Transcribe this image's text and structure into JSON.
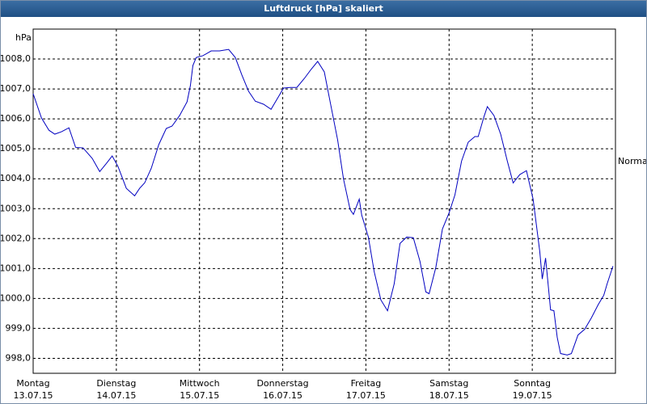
{
  "chart_data": {
    "type": "line",
    "title": "Luftdruck [hPa] skaliert",
    "y_label": "hPa",
    "annotation": "Normal",
    "xlim": [
      0,
      7
    ],
    "xticks": [
      {
        "value": 0,
        "label": "Montag\n13.07.15"
      },
      {
        "value": 1,
        "label": "Dienstag\n14.07.15"
      },
      {
        "value": 2,
        "label": "Mittwoch\n15.07.15"
      },
      {
        "value": 3,
        "label": "Donnerstag\n16.07.15"
      },
      {
        "value": 4,
        "label": "Freitag\n17.07.15"
      },
      {
        "value": 5,
        "label": "Samstag\n18.07.15"
      },
      {
        "value": 6,
        "label": "Sonntag\n19.07.15"
      }
    ],
    "ylim": [
      997.5,
      1009
    ],
    "yticks": [
      {
        "value": 998,
        "label": "998,0"
      },
      {
        "value": 999,
        "label": "999,0"
      },
      {
        "value": 1000,
        "label": "1000,0"
      },
      {
        "value": 1001,
        "label": "1001,0"
      },
      {
        "value": 1002,
        "label": "1002,0"
      },
      {
        "value": 1003,
        "label": "1003,0"
      },
      {
        "value": 1004,
        "label": "1004,0"
      },
      {
        "value": 1005,
        "label": "1005,0"
      },
      {
        "value": 1006,
        "label": "1006,0"
      },
      {
        "value": 1007,
        "label": "1007,0"
      },
      {
        "value": 1008,
        "label": "1008,0"
      }
    ],
    "grid": true,
    "series": [
      {
        "name": "Luftdruck",
        "color": "#0000c0",
        "x": [
          0,
          0.1,
          0.19,
          0.26,
          0.34,
          0.43,
          0.51,
          0.6,
          0.71,
          0.8,
          0.88,
          0.95,
          1.02,
          1.12,
          1.22,
          1.28,
          1.34,
          1.42,
          1.51,
          1.6,
          1.67,
          1.76,
          1.85,
          1.89,
          1.92,
          1.96,
          2.04,
          2.14,
          2.24,
          2.35,
          2.43,
          2.51,
          2.59,
          2.67,
          2.77,
          2.86,
          2.94,
          3.01,
          3.09,
          3.17,
          3.26,
          3.34,
          3.42,
          3.5,
          3.58,
          3.66,
          3.73,
          3.81,
          3.85,
          3.92,
          3.95,
          4.03,
          4.1,
          4.18,
          4.26,
          4.34,
          4.41,
          4.49,
          4.57,
          4.65,
          4.72,
          4.76,
          4.84,
          4.92,
          5.0,
          5.07,
          5.15,
          5.23,
          5.31,
          5.35,
          5.42,
          5.46,
          5.54,
          5.62,
          5.7,
          5.77,
          5.85,
          5.93,
          6.01,
          6.09,
          6.12,
          6.16,
          6.19,
          6.22,
          6.26,
          6.3,
          6.34,
          6.42,
          6.47,
          6.55,
          6.63,
          6.71,
          6.79,
          6.86,
          6.9,
          6.97
        ],
        "values": [
          1006.84,
          1006.03,
          1005.62,
          1005.49,
          1005.57,
          1005.7,
          1005.05,
          1005.03,
          1004.68,
          1004.24,
          1004.51,
          1004.76,
          1004.41,
          1003.68,
          1003.43,
          1003.68,
          1003.86,
          1004.35,
          1005.14,
          1005.68,
          1005.76,
          1006.11,
          1006.57,
          1007.11,
          1007.78,
          1008.05,
          1008.11,
          1008.27,
          1008.27,
          1008.32,
          1008.05,
          1007.46,
          1006.92,
          1006.59,
          1006.49,
          1006.32,
          1006.7,
          1007.03,
          1007.05,
          1007.05,
          1007.35,
          1007.65,
          1007.92,
          1007.57,
          1006.43,
          1005.3,
          1004.0,
          1002.97,
          1002.81,
          1003.32,
          1002.78,
          1002.05,
          1000.89,
          999.95,
          999.59,
          1000.49,
          1001.84,
          1002.05,
          1002.03,
          1001.24,
          1000.22,
          1000.16,
          1001.03,
          1002.32,
          1002.86,
          1003.46,
          1004.59,
          1005.22,
          1005.41,
          1005.41,
          1006.08,
          1006.41,
          1006.11,
          1005.49,
          1004.59,
          1003.86,
          1004.14,
          1004.27,
          1003.32,
          1001.57,
          1000.65,
          1001.35,
          1000.49,
          999.62,
          999.59,
          998.7,
          998.16,
          998.11,
          998.16,
          998.78,
          998.97,
          999.35,
          999.78,
          1000.11,
          1000.49,
          1001.08
        ]
      }
    ]
  }
}
